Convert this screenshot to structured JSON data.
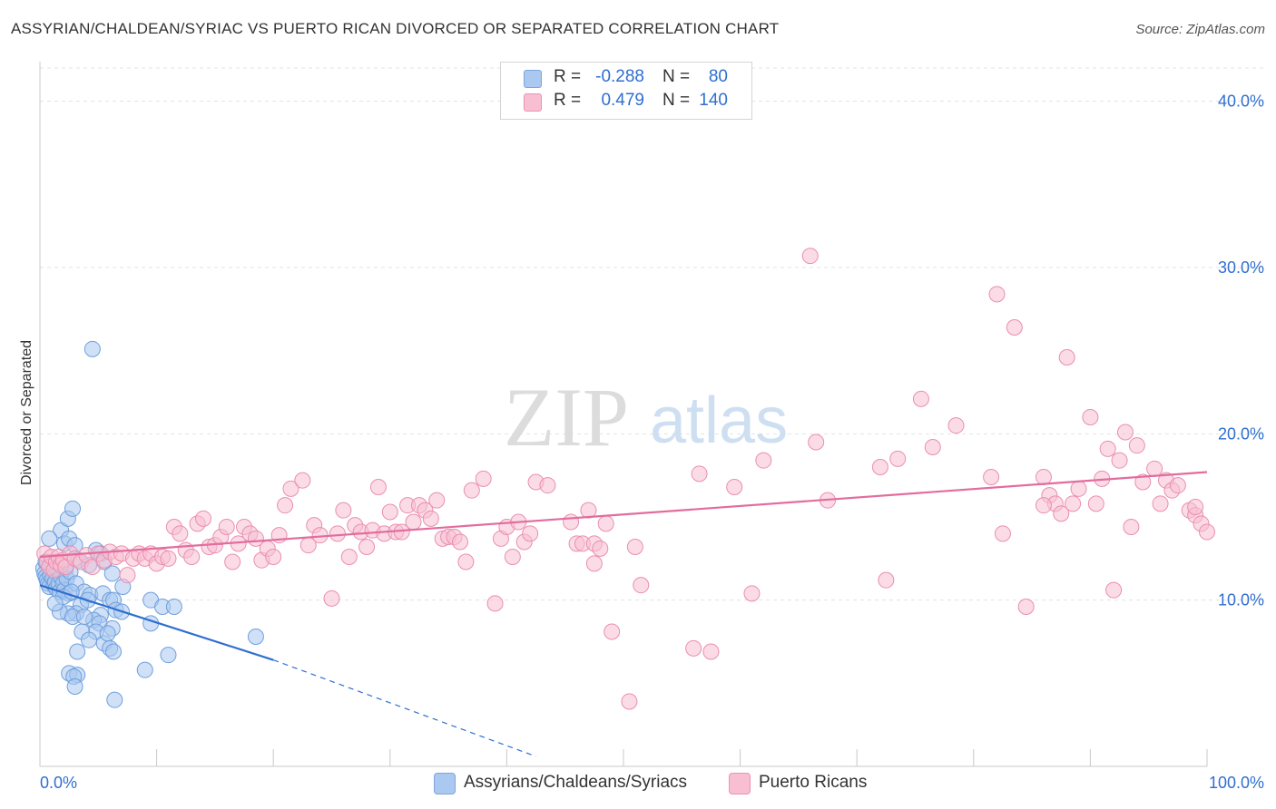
{
  "title": "ASSYRIAN/CHALDEAN/SYRIAC VS PUERTO RICAN DIVORCED OR SEPARATED CORRELATION CHART",
  "source": "Source: ZipAtlas.com",
  "watermark": {
    "zip": "ZIP",
    "atlas": "atlas"
  },
  "legend": {
    "r_label": "R =",
    "n_label": "N =",
    "rows": [
      {
        "r": "-0.288",
        "n": "80",
        "color": "#aac8f0"
      },
      {
        "r": "0.479",
        "n": "140",
        "color": "#f7bfd1"
      }
    ]
  },
  "bottom_legend": [
    {
      "label": "Assyrians/Chaldeans/Syriacs",
      "color": "#aac8f0"
    },
    {
      "label": "Puerto Ricans",
      "color": "#f7bfd1"
    }
  ],
  "chart_data": {
    "type": "scatter",
    "ylabel": "Divorced or Separated",
    "xlabel": "",
    "xlim": [
      0,
      100
    ],
    "ylim": [
      0,
      42
    ],
    "x_tick_labels": [
      {
        "value": 0,
        "label": "0.0%"
      },
      {
        "value": 100,
        "label": "100.0%"
      }
    ],
    "y_tick_labels": [
      {
        "value": 10,
        "label": "10.0%"
      },
      {
        "value": 20,
        "label": "20.0%"
      },
      {
        "value": 30,
        "label": "30.0%"
      },
      {
        "value": 40,
        "label": "40.0%"
      }
    ],
    "grid": "horizontal dashed",
    "series": [
      {
        "name": "Assyrians/Chaldeans/Syriacs",
        "color": "#aac8f0",
        "stroke": "#6f9fdc",
        "trend": {
          "x1": 0,
          "y1": 10.9,
          "x2": 20,
          "y2": 6.4,
          "dash_to_x": 42.5,
          "dash_to_y": 0.6,
          "color": "#2f6fd0"
        },
        "points": [
          [
            0.3,
            11.9
          ],
          [
            0.4,
            11.6
          ],
          [
            0.5,
            11.4
          ],
          [
            0.6,
            11.2
          ],
          [
            0.7,
            11.0
          ],
          [
            0.8,
            10.8
          ],
          [
            0.9,
            11.5
          ],
          [
            1.0,
            12.2
          ],
          [
            1.1,
            11.3
          ],
          [
            1.2,
            10.9
          ],
          [
            1.3,
            11.1
          ],
          [
            1.4,
            10.7
          ],
          [
            1.5,
            11.8
          ],
          [
            1.6,
            11.0
          ],
          [
            1.7,
            10.5
          ],
          [
            1.8,
            11.4
          ],
          [
            2.0,
            11.0
          ],
          [
            2.1,
            10.6
          ],
          [
            2.2,
            11.9
          ],
          [
            2.3,
            11.3
          ],
          [
            2.5,
            10.4
          ],
          [
            2.6,
            11.7
          ],
          [
            1.8,
            14.2
          ],
          [
            2.1,
            13.4
          ],
          [
            2.4,
            14.9
          ],
          [
            2.8,
            15.5
          ],
          [
            0.8,
            13.7
          ],
          [
            2.5,
            13.7
          ],
          [
            3.0,
            13.3
          ],
          [
            4.5,
            25.1
          ],
          [
            4.8,
            13.0
          ],
          [
            5.2,
            12.8
          ],
          [
            5.5,
            12.3
          ],
          [
            3.3,
            12.4
          ],
          [
            4.2,
            12.1
          ],
          [
            6.2,
            11.6
          ],
          [
            3.1,
            11.0
          ],
          [
            3.8,
            10.5
          ],
          [
            4.3,
            10.3
          ],
          [
            5.4,
            10.4
          ],
          [
            6.0,
            10.0
          ],
          [
            7.1,
            10.8
          ],
          [
            3.5,
            9.7
          ],
          [
            4.1,
            10.0
          ],
          [
            5.2,
            9.1
          ],
          [
            6.3,
            10.0
          ],
          [
            6.5,
            9.4
          ],
          [
            7.0,
            9.3
          ],
          [
            3.1,
            9.2
          ],
          [
            2.4,
            9.2
          ],
          [
            1.7,
            9.3
          ],
          [
            2.8,
            9.0
          ],
          [
            4.6,
            8.8
          ],
          [
            5.1,
            8.6
          ],
          [
            6.2,
            8.3
          ],
          [
            4.8,
            8.1
          ],
          [
            3.6,
            8.1
          ],
          [
            4.2,
            7.6
          ],
          [
            5.5,
            7.4
          ],
          [
            6.0,
            7.1
          ],
          [
            6.3,
            6.9
          ],
          [
            3.2,
            6.9
          ],
          [
            9.5,
            10.0
          ],
          [
            10.5,
            9.6
          ],
          [
            11.5,
            9.6
          ],
          [
            9.5,
            8.6
          ],
          [
            18.5,
            7.8
          ],
          [
            11.0,
            6.7
          ],
          [
            2.5,
            5.6
          ],
          [
            3.2,
            5.5
          ],
          [
            2.9,
            5.4
          ],
          [
            3.0,
            4.8
          ],
          [
            9.0,
            5.8
          ],
          [
            6.4,
            4.0
          ],
          [
            2.0,
            10.2
          ],
          [
            2.7,
            10.5
          ],
          [
            1.3,
            9.8
          ],
          [
            0.5,
            12.3
          ],
          [
            3.8,
            9.0
          ],
          [
            5.8,
            8.0
          ]
        ]
      },
      {
        "name": "Puerto Ricans",
        "color": "#f7bfd1",
        "stroke": "#ea8eb0",
        "trend": {
          "x1": 0,
          "y1": 12.6,
          "x2": 100,
          "y2": 17.7,
          "color": "#e26d9c"
        },
        "points": [
          [
            0.4,
            12.8
          ],
          [
            0.6,
            12.3
          ],
          [
            0.8,
            12.0
          ],
          [
            1.0,
            12.6
          ],
          [
            1.2,
            11.8
          ],
          [
            1.4,
            12.3
          ],
          [
            1.6,
            12.6
          ],
          [
            1.8,
            12.1
          ],
          [
            2.0,
            12.4
          ],
          [
            2.2,
            12.0
          ],
          [
            2.6,
            12.8
          ],
          [
            3.0,
            12.5
          ],
          [
            3.5,
            12.3
          ],
          [
            4.0,
            12.7
          ],
          [
            4.5,
            12.0
          ],
          [
            5.0,
            12.8
          ],
          [
            5.5,
            12.4
          ],
          [
            6.0,
            12.9
          ],
          [
            6.5,
            12.6
          ],
          [
            7.0,
            12.8
          ],
          [
            7.5,
            11.5
          ],
          [
            8.0,
            12.5
          ],
          [
            8.5,
            12.8
          ],
          [
            9.0,
            12.5
          ],
          [
            9.5,
            12.8
          ],
          [
            10.0,
            12.2
          ],
          [
            10.5,
            12.6
          ],
          [
            11.0,
            12.5
          ],
          [
            11.5,
            14.4
          ],
          [
            12.0,
            14.0
          ],
          [
            12.5,
            13.0
          ],
          [
            13.0,
            12.6
          ],
          [
            13.5,
            14.6
          ],
          [
            14.0,
            14.9
          ],
          [
            14.5,
            13.2
          ],
          [
            15.0,
            13.3
          ],
          [
            15.5,
            13.8
          ],
          [
            16.0,
            14.4
          ],
          [
            16.5,
            12.3
          ],
          [
            17.0,
            13.4
          ],
          [
            17.5,
            14.4
          ],
          [
            18.0,
            14.0
          ],
          [
            18.5,
            13.7
          ],
          [
            19.0,
            12.4
          ],
          [
            19.5,
            13.1
          ],
          [
            20.0,
            12.6
          ],
          [
            20.5,
            13.9
          ],
          [
            21.0,
            15.7
          ],
          [
            21.5,
            16.7
          ],
          [
            22.5,
            17.2
          ],
          [
            23.0,
            13.3
          ],
          [
            23.5,
            14.5
          ],
          [
            24.0,
            13.9
          ],
          [
            25.0,
            10.1
          ],
          [
            25.5,
            14.0
          ],
          [
            26.0,
            15.4
          ],
          [
            26.5,
            12.6
          ],
          [
            27.0,
            14.5
          ],
          [
            27.5,
            14.1
          ],
          [
            28.0,
            13.2
          ],
          [
            28.5,
            14.2
          ],
          [
            29.0,
            16.8
          ],
          [
            29.5,
            14.0
          ],
          [
            30.0,
            15.3
          ],
          [
            30.5,
            14.1
          ],
          [
            31.0,
            14.1
          ],
          [
            31.5,
            15.7
          ],
          [
            32.0,
            14.7
          ],
          [
            32.5,
            15.7
          ],
          [
            33.0,
            15.4
          ],
          [
            33.5,
            14.9
          ],
          [
            34.0,
            16.0
          ],
          [
            34.5,
            13.7
          ],
          [
            35.0,
            13.8
          ],
          [
            35.5,
            13.8
          ],
          [
            36.0,
            13.5
          ],
          [
            36.5,
            12.3
          ],
          [
            37.0,
            16.6
          ],
          [
            38.0,
            17.3
          ],
          [
            39.0,
            9.8
          ],
          [
            39.5,
            13.7
          ],
          [
            40.0,
            14.4
          ],
          [
            40.5,
            12.6
          ],
          [
            41.0,
            14.7
          ],
          [
            41.5,
            13.5
          ],
          [
            42.0,
            14.0
          ],
          [
            42.5,
            17.1
          ],
          [
            43.5,
            16.9
          ],
          [
            45.5,
            14.7
          ],
          [
            46.0,
            13.4
          ],
          [
            46.5,
            13.4
          ],
          [
            47.0,
            15.4
          ],
          [
            47.5,
            13.4
          ],
          [
            47.5,
            12.2
          ],
          [
            48.0,
            13.1
          ],
          [
            48.5,
            14.6
          ],
          [
            49.0,
            8.1
          ],
          [
            50.5,
            3.9
          ],
          [
            51.0,
            13.2
          ],
          [
            51.5,
            10.9
          ],
          [
            56.0,
            7.1
          ],
          [
            56.5,
            17.6
          ],
          [
            57.5,
            6.9
          ],
          [
            59.5,
            16.8
          ],
          [
            61.0,
            10.4
          ],
          [
            62.0,
            18.4
          ],
          [
            66.5,
            19.5
          ],
          [
            66.0,
            30.7
          ],
          [
            67.5,
            16.0
          ],
          [
            72.5,
            11.2
          ],
          [
            72.0,
            18.0
          ],
          [
            73.5,
            18.5
          ],
          [
            75.5,
            22.1
          ],
          [
            76.5,
            19.2
          ],
          [
            78.5,
            20.5
          ],
          [
            81.5,
            17.4
          ],
          [
            82.0,
            28.4
          ],
          [
            82.5,
            14.0
          ],
          [
            83.5,
            26.4
          ],
          [
            84.5,
            9.6
          ],
          [
            86.0,
            17.4
          ],
          [
            86.5,
            16.3
          ],
          [
            87.0,
            15.8
          ],
          [
            87.5,
            15.2
          ],
          [
            88.0,
            24.6
          ],
          [
            88.5,
            15.8
          ],
          [
            89.0,
            16.7
          ],
          [
            90.0,
            21.0
          ],
          [
            90.5,
            15.8
          ],
          [
            91.0,
            17.3
          ],
          [
            91.5,
            19.1
          ],
          [
            92.0,
            10.6
          ],
          [
            92.5,
            18.4
          ],
          [
            93.0,
            20.1
          ],
          [
            93.5,
            14.4
          ],
          [
            94.0,
            19.3
          ],
          [
            94.5,
            17.1
          ],
          [
            95.5,
            17.9
          ],
          [
            96.0,
            15.8
          ],
          [
            96.5,
            17.2
          ],
          [
            97.0,
            16.6
          ],
          [
            97.5,
            16.9
          ],
          [
            98.5,
            15.4
          ],
          [
            99.0,
            15.1
          ],
          [
            99.5,
            14.6
          ],
          [
            100.0,
            14.1
          ],
          [
            99.0,
            15.6
          ],
          [
            86.0,
            15.7
          ]
        ]
      }
    ]
  }
}
